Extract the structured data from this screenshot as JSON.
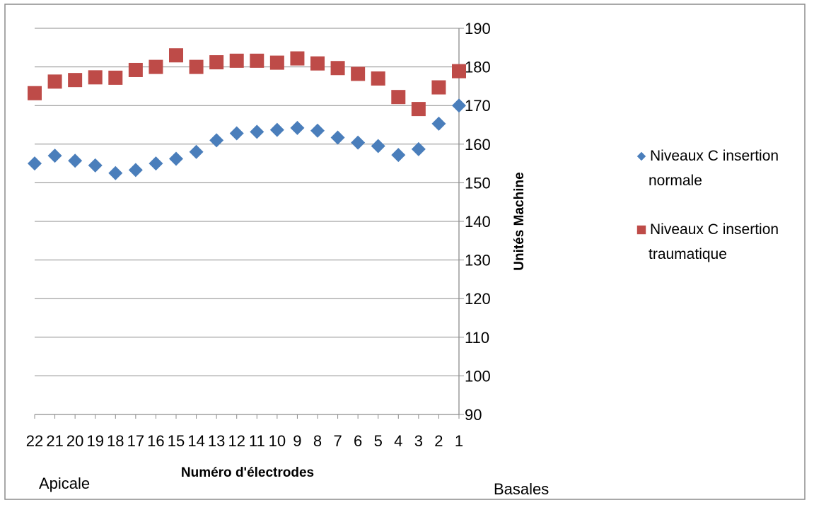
{
  "chart_data": {
    "type": "scatter",
    "title": "",
    "xlabel": "Numéro d'électrodes",
    "ylabel": "Unités Machine",
    "x_categories": [
      "22",
      "21",
      "20",
      "19",
      "18",
      "17",
      "16",
      "15",
      "14",
      "13",
      "12",
      "11",
      "10",
      "9",
      "8",
      "7",
      "6",
      "5",
      "4",
      "3",
      "2",
      "1"
    ],
    "ylim": [
      90,
      190
    ],
    "y_ticks": [
      "90",
      "100",
      "110",
      "120",
      "130",
      "140",
      "150",
      "160",
      "170",
      "180",
      "190"
    ],
    "y_axis_side": "right",
    "grid": true,
    "legend_position": "right",
    "series": [
      {
        "name_lines": [
          "Niveaux C insertion",
          "normale"
        ],
        "marker": "diamond",
        "color": "#4a7ebb",
        "values": [
          155,
          157,
          155.7,
          154.5,
          152.5,
          153.3,
          155,
          156.2,
          158,
          161,
          162.8,
          163.2,
          163.7,
          164.2,
          163.5,
          161.7,
          160.4,
          159.5,
          157.2,
          158.7,
          165.3,
          170
        ]
      },
      {
        "name_lines": [
          "Niveaux C insertion",
          "traumatique"
        ],
        "marker": "square",
        "color": "#be4b48",
        "values": [
          173.2,
          176.2,
          176.6,
          177.3,
          177.2,
          179.2,
          180,
          183,
          180,
          181.2,
          181.6,
          181.6,
          181.1,
          182.2,
          180.9,
          179.7,
          178.2,
          177,
          172.2,
          169.1,
          174.7,
          178.9
        ]
      }
    ]
  },
  "annotations": {
    "left_label": "Apicale",
    "right_label": "Basales"
  }
}
